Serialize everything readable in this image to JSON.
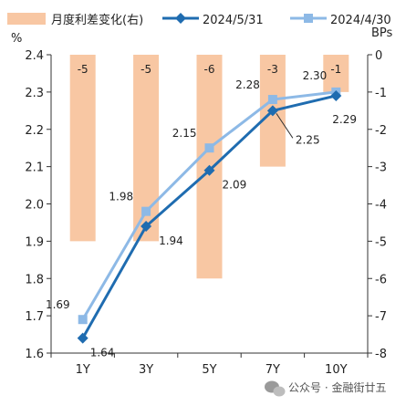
{
  "chart_data": {
    "type": "bar+line",
    "categories": [
      "1Y",
      "3Y",
      "5Y",
      "7Y",
      "10Y"
    ],
    "bars": {
      "name": "月度利差变化(右)",
      "values": [
        -5,
        -5,
        -6,
        -3,
        -1
      ],
      "color": "#f8c7a3"
    },
    "series": [
      {
        "name": "2024/5/31",
        "values": [
          1.64,
          1.94,
          2.09,
          2.25,
          2.29
        ],
        "color": "#1f6cb0",
        "marker": "diamond"
      },
      {
        "name": "2024/4/30",
        "values": [
          1.69,
          1.98,
          2.15,
          2.28,
          2.3
        ],
        "color": "#8db9e6",
        "marker": "square"
      }
    ],
    "y_left": {
      "unit": "%",
      "min": 1.6,
      "max": 2.4,
      "step": 0.1,
      "ticks": [
        "1.6",
        "1.7",
        "1.8",
        "1.9",
        "2.0",
        "2.1",
        "2.2",
        "2.3",
        "2.4"
      ]
    },
    "y_right": {
      "unit": "BPs",
      "min": -8,
      "max": 0,
      "step": 1,
      "ticks": [
        "-8",
        "-7",
        "-6",
        "-5",
        "-4",
        "-3",
        "-2",
        "-1",
        "0"
      ]
    },
    "legend_position": "top",
    "grid": false
  },
  "watermark": {
    "icon": "wechat-icon",
    "text": "公众号 · 金融街廿五"
  }
}
